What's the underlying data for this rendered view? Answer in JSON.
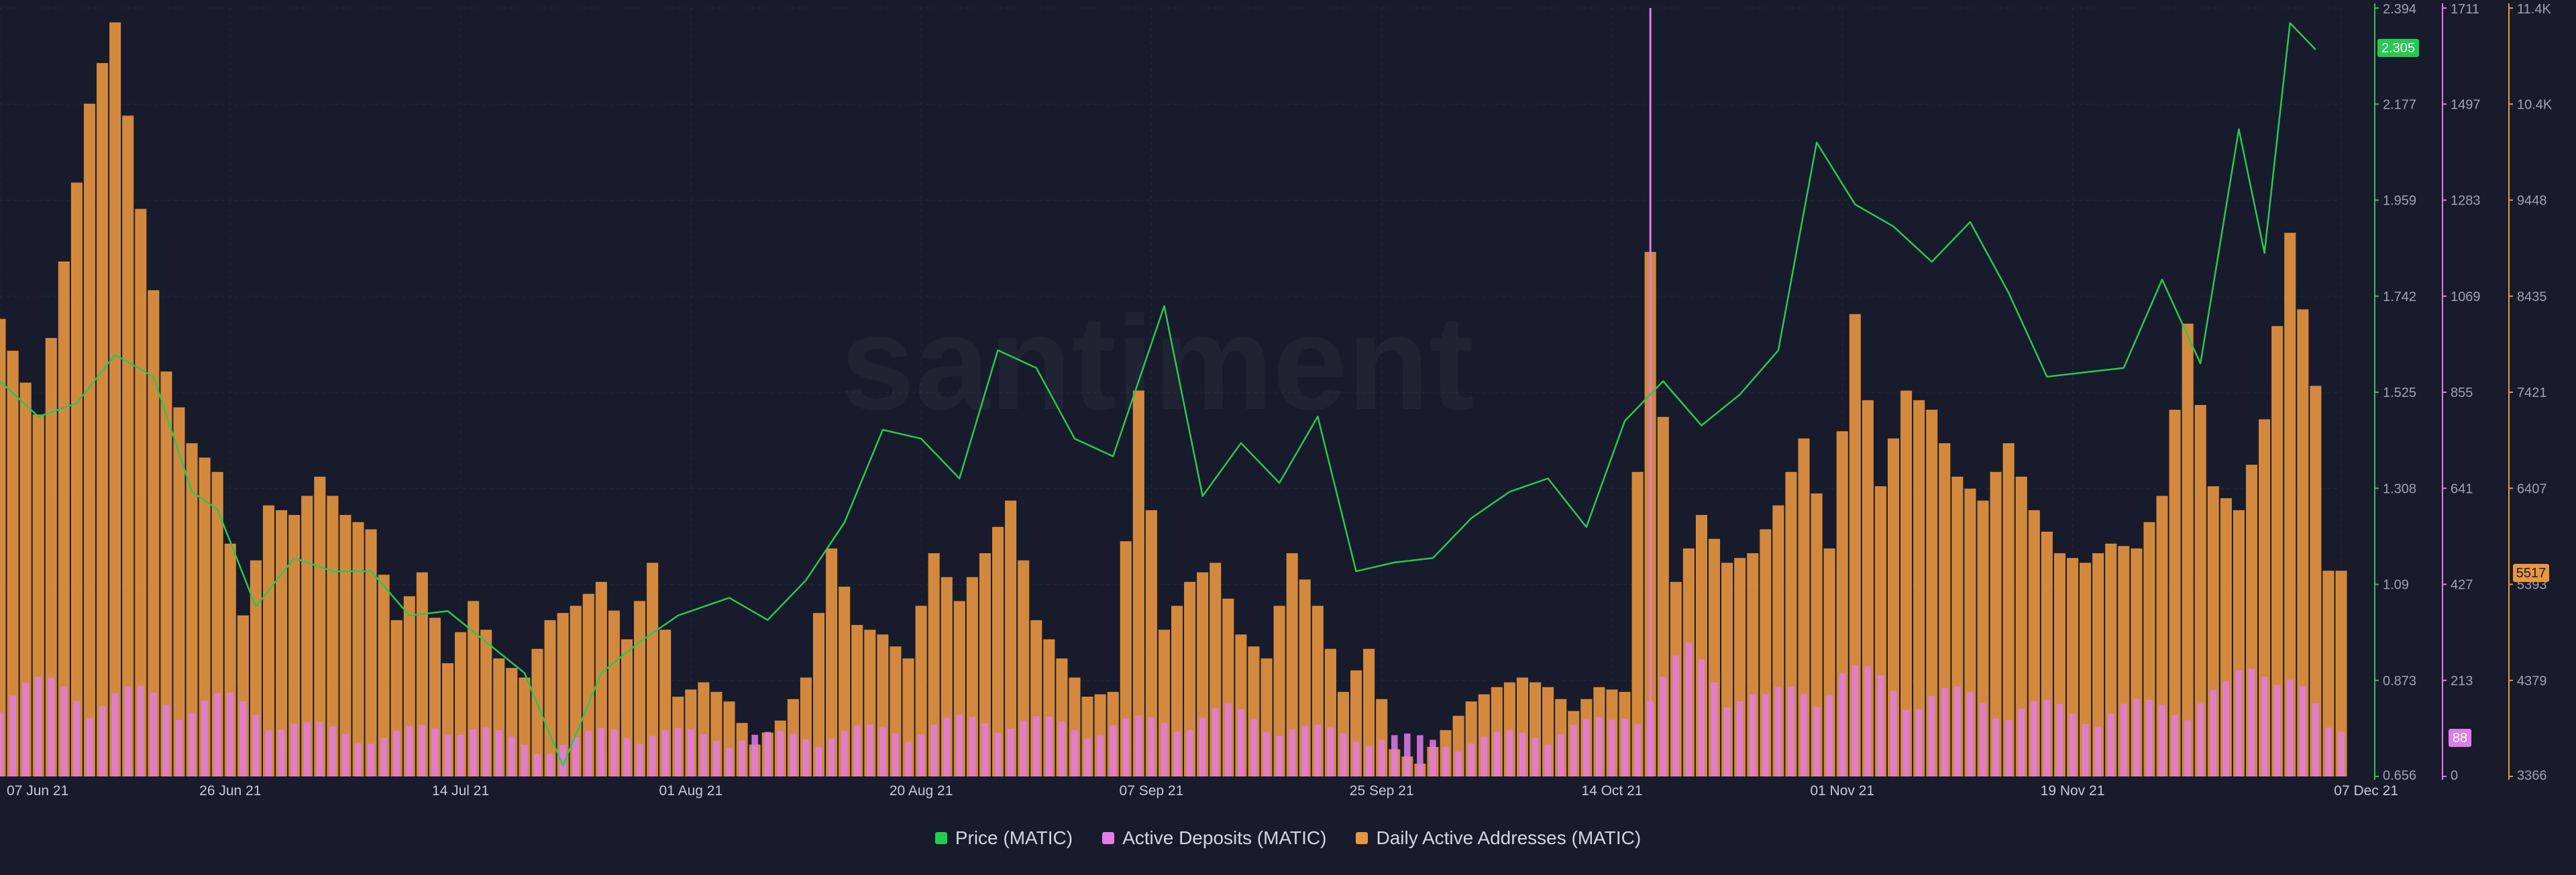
{
  "watermark": "santiment",
  "legend": {
    "price": "Price (MATIC)",
    "deposits": "Active Deposits (MATIC)",
    "daa": "Daily Active Addresses (MATIC)"
  },
  "current_values": {
    "price": "2.305",
    "deposits": "88",
    "daa": "5517"
  },
  "chart_data": {
    "type": "line",
    "title": "",
    "grid": true,
    "legend_position": "bottom-center",
    "x_ticks": [
      "07 Jun 21",
      "26 Jun 21",
      "14 Jul 21",
      "01 Aug 21",
      "20 Aug 21",
      "07 Sep 21",
      "25 Sep 21",
      "14 Oct 21",
      "01 Nov 21",
      "19 Nov 21",
      "07 Dec 21"
    ],
    "x_range": [
      "2021-06-07",
      "2021-12-07"
    ],
    "axes": {
      "price": {
        "min": 0.656,
        "max": 2.394,
        "ticks": [
          "2.394",
          "2.177",
          "1.959",
          "1.742",
          "1.525",
          "1.308",
          "1.09",
          "0.873",
          "0.656"
        ]
      },
      "deposits": {
        "min": 0,
        "max": 1711,
        "ticks": [
          "1711",
          "1497",
          "1283",
          "1069",
          "855",
          "641",
          "427",
          "213",
          "0"
        ]
      },
      "daa": {
        "min": 3366,
        "max": 11400,
        "ticks": [
          "11.4K",
          "10.4K",
          "9448",
          "8435",
          "7421",
          "6407",
          "5393",
          "4379",
          "3366"
        ]
      }
    },
    "colors": {
      "price": "#26c953",
      "deposits": "#e07de6",
      "daa": "#e8963f",
      "background": "#181b2b"
    },
    "series": [
      {
        "name": "Price (MATIC)",
        "type": "line",
        "axis": "price",
        "points": [
          [
            "2021-06-07",
            1.55
          ],
          [
            "2021-06-10",
            1.47
          ],
          [
            "2021-06-13",
            1.5
          ],
          [
            "2021-06-16",
            1.61
          ],
          [
            "2021-06-19",
            1.56
          ],
          [
            "2021-06-22",
            1.3
          ],
          [
            "2021-06-24",
            1.26
          ],
          [
            "2021-06-27",
            1.04
          ],
          [
            "2021-06-30",
            1.15
          ],
          [
            "2021-07-03",
            1.12
          ],
          [
            "2021-07-06",
            1.12
          ],
          [
            "2021-07-09",
            1.02
          ],
          [
            "2021-07-12",
            1.03
          ],
          [
            "2021-07-15",
            0.96
          ],
          [
            "2021-07-18",
            0.89
          ],
          [
            "2021-07-21",
            0.68
          ],
          [
            "2021-07-24",
            0.89
          ],
          [
            "2021-07-27",
            0.96
          ],
          [
            "2021-07-30",
            1.02
          ],
          [
            "2021-08-03",
            1.06
          ],
          [
            "2021-08-06",
            1.01
          ],
          [
            "2021-08-09",
            1.1
          ],
          [
            "2021-08-12",
            1.23
          ],
          [
            "2021-08-15",
            1.44
          ],
          [
            "2021-08-18",
            1.42
          ],
          [
            "2021-08-21",
            1.33
          ],
          [
            "2021-08-24",
            1.62
          ],
          [
            "2021-08-27",
            1.58
          ],
          [
            "2021-08-30",
            1.42
          ],
          [
            "2021-09-02",
            1.38
          ],
          [
            "2021-09-06",
            1.72
          ],
          [
            "2021-09-09",
            1.29
          ],
          [
            "2021-09-12",
            1.41
          ],
          [
            "2021-09-15",
            1.32
          ],
          [
            "2021-09-18",
            1.47
          ],
          [
            "2021-09-21",
            1.12
          ],
          [
            "2021-09-24",
            1.14
          ],
          [
            "2021-09-27",
            1.15
          ],
          [
            "2021-09-30",
            1.24
          ],
          [
            "2021-10-03",
            1.3
          ],
          [
            "2021-10-06",
            1.33
          ],
          [
            "2021-10-09",
            1.22
          ],
          [
            "2021-10-12",
            1.46
          ],
          [
            "2021-10-15",
            1.55
          ],
          [
            "2021-10-18",
            1.45
          ],
          [
            "2021-10-21",
            1.52
          ],
          [
            "2021-10-24",
            1.62
          ],
          [
            "2021-10-27",
            2.09
          ],
          [
            "2021-10-30",
            1.95
          ],
          [
            "2021-11-02",
            1.9
          ],
          [
            "2021-11-05",
            1.82
          ],
          [
            "2021-11-08",
            1.91
          ],
          [
            "2021-11-11",
            1.75
          ],
          [
            "2021-11-14",
            1.56
          ],
          [
            "2021-11-17",
            1.57
          ],
          [
            "2021-11-20",
            1.58
          ],
          [
            "2021-11-23",
            1.78
          ],
          [
            "2021-11-26",
            1.59
          ],
          [
            "2021-11-29",
            2.12
          ],
          [
            "2021-12-01",
            1.84
          ],
          [
            "2021-12-03",
            2.36
          ],
          [
            "2021-12-05",
            2.3
          ]
        ]
      },
      {
        "name": "Active Deposits (MATIC)",
        "type": "bar",
        "axis": "deposits",
        "points": [
          [
            "2021-06-07",
            190
          ],
          [
            "2021-06-13",
            170
          ],
          [
            "2021-06-19",
            160
          ],
          [
            "2021-06-25",
            150
          ],
          [
            "2021-07-01",
            100
          ],
          [
            "2021-07-07",
            80
          ],
          [
            "2021-07-13",
            110
          ],
          [
            "2021-07-19",
            55
          ],
          [
            "2021-07-25",
            95
          ],
          [
            "2021-07-31",
            85
          ],
          [
            "2021-08-06",
            80
          ],
          [
            "2021-08-12",
            90
          ],
          [
            "2021-08-18",
            100
          ],
          [
            "2021-08-24",
            120
          ],
          [
            "2021-08-30",
            100
          ],
          [
            "2021-09-05",
            110
          ],
          [
            "2021-09-11",
            130
          ],
          [
            "2021-09-17",
            95
          ],
          [
            "2021-09-23",
            80
          ],
          [
            "2021-09-29",
            70
          ],
          [
            "2021-10-05",
            90
          ],
          [
            "2021-10-11",
            110
          ],
          [
            "2021-10-14",
            1711
          ],
          [
            "2021-10-17",
            240
          ],
          [
            "2021-10-23",
            150
          ],
          [
            "2021-10-29",
            210
          ],
          [
            "2021-11-04",
            170
          ],
          [
            "2021-11-10",
            150
          ],
          [
            "2021-11-16",
            130
          ],
          [
            "2021-11-22",
            140
          ],
          [
            "2021-11-28",
            170
          ],
          [
            "2021-12-02",
            260
          ],
          [
            "2021-12-06",
            88
          ]
        ]
      },
      {
        "name": "Daily Active Addresses (MATIC)",
        "type": "bar",
        "axis": "daa",
        "points": [
          [
            "2021-06-07",
            8150
          ],
          [
            "2021-06-10",
            7150
          ],
          [
            "2021-06-12",
            8750
          ],
          [
            "2021-06-14",
            10400
          ],
          [
            "2021-06-16",
            11250
          ],
          [
            "2021-06-18",
            9300
          ],
          [
            "2021-06-20",
            7600
          ],
          [
            "2021-06-22",
            6850
          ],
          [
            "2021-06-24",
            6550
          ],
          [
            "2021-06-26",
            5050
          ],
          [
            "2021-06-28",
            6200
          ],
          [
            "2021-06-30",
            6100
          ],
          [
            "2021-07-02",
            6500
          ],
          [
            "2021-07-04",
            6100
          ],
          [
            "2021-07-06",
            5950
          ],
          [
            "2021-07-08",
            5000
          ],
          [
            "2021-07-10",
            5500
          ],
          [
            "2021-07-12",
            4550
          ],
          [
            "2021-07-14",
            5200
          ],
          [
            "2021-07-16",
            4600
          ],
          [
            "2021-07-18",
            4400
          ],
          [
            "2021-07-20",
            5000
          ],
          [
            "2021-07-22",
            5150
          ],
          [
            "2021-07-24",
            5400
          ],
          [
            "2021-07-26",
            4800
          ],
          [
            "2021-07-28",
            5600
          ],
          [
            "2021-07-30",
            4200
          ],
          [
            "2021-08-01",
            4350
          ],
          [
            "2021-08-03",
            4150
          ],
          [
            "2021-08-05",
            3700
          ],
          [
            "2021-08-07",
            3950
          ],
          [
            "2021-08-09",
            4400
          ],
          [
            "2021-08-11",
            5750
          ],
          [
            "2021-08-13",
            4950
          ],
          [
            "2021-08-15",
            4850
          ],
          [
            "2021-08-17",
            4600
          ],
          [
            "2021-08-19",
            5700
          ],
          [
            "2021-08-21",
            5200
          ],
          [
            "2021-08-23",
            5700
          ],
          [
            "2021-08-25",
            6250
          ],
          [
            "2021-08-27",
            5000
          ],
          [
            "2021-08-29",
            4600
          ],
          [
            "2021-08-31",
            4200
          ],
          [
            "2021-09-02",
            4250
          ],
          [
            "2021-09-04",
            7400
          ],
          [
            "2021-09-06",
            4900
          ],
          [
            "2021-09-08",
            5400
          ],
          [
            "2021-09-10",
            5600
          ],
          [
            "2021-09-12",
            4850
          ],
          [
            "2021-09-14",
            4600
          ],
          [
            "2021-09-16",
            5700
          ],
          [
            "2021-09-18",
            5150
          ],
          [
            "2021-09-20",
            4250
          ],
          [
            "2021-09-22",
            4700
          ],
          [
            "2021-09-24",
            3650
          ],
          [
            "2021-09-26",
            3500
          ],
          [
            "2021-09-28",
            3850
          ],
          [
            "2021-09-30",
            4150
          ],
          [
            "2021-10-02",
            4300
          ],
          [
            "2021-10-04",
            4400
          ],
          [
            "2021-10-06",
            4300
          ],
          [
            "2021-10-08",
            4050
          ],
          [
            "2021-10-10",
            4300
          ],
          [
            "2021-10-12",
            4250
          ],
          [
            "2021-10-14",
            8850
          ],
          [
            "2021-10-16",
            5400
          ],
          [
            "2021-10-18",
            6100
          ],
          [
            "2021-10-20",
            5600
          ],
          [
            "2021-10-22",
            5700
          ],
          [
            "2021-10-24",
            6200
          ],
          [
            "2021-10-26",
            6900
          ],
          [
            "2021-10-28",
            5750
          ],
          [
            "2021-10-30",
            8200
          ],
          [
            "2021-11-01",
            6400
          ],
          [
            "2021-11-03",
            7400
          ],
          [
            "2021-11-05",
            7200
          ],
          [
            "2021-11-07",
            6500
          ],
          [
            "2021-11-09",
            6250
          ],
          [
            "2021-11-11",
            6850
          ],
          [
            "2021-11-13",
            6150
          ],
          [
            "2021-11-15",
            5700
          ],
          [
            "2021-11-17",
            5600
          ],
          [
            "2021-11-19",
            5800
          ],
          [
            "2021-11-21",
            5750
          ],
          [
            "2021-11-23",
            6300
          ],
          [
            "2021-11-25",
            8100
          ],
          [
            "2021-11-27",
            6400
          ],
          [
            "2021-11-29",
            6150
          ],
          [
            "2021-12-01",
            7100
          ],
          [
            "2021-12-03",
            9050
          ],
          [
            "2021-12-05",
            7450
          ],
          [
            "2021-12-06",
            5517
          ]
        ]
      }
    ]
  }
}
